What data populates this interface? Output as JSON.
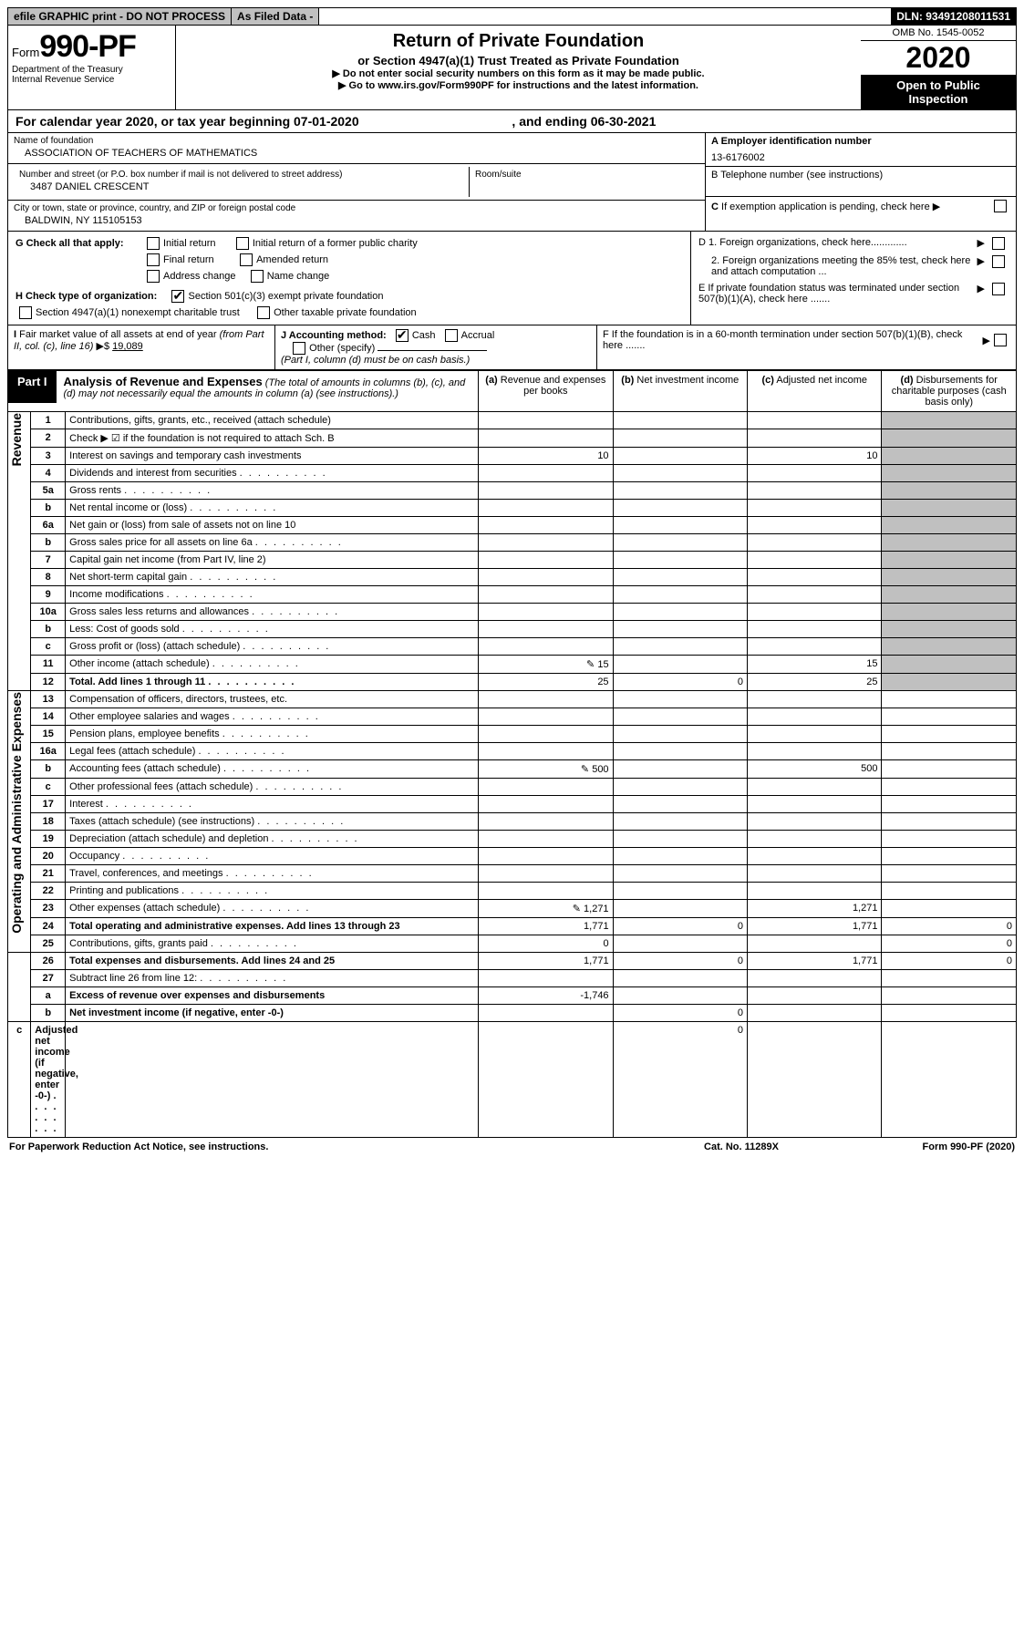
{
  "header": {
    "efile": "efile GRAPHIC print - DO NOT PROCESS",
    "asfiled": "As Filed Data -",
    "dln": "DLN: 93491208011531",
    "form_prefix": "Form",
    "form_number": "990-PF",
    "dept1": "Department of the Treasury",
    "dept2": "Internal Revenue Service",
    "title": "Return of Private Foundation",
    "subtitle": "or Section 4947(a)(1) Trust Treated as Private Foundation",
    "line1": "▶ Do not enter social security numbers on this form as it may be made public.",
    "line2_pre": "▶ Go to ",
    "line2_link": "www.irs.gov/Form990PF",
    "line2_post": " for instructions and the latest information.",
    "omb": "OMB No. 1545-0052",
    "year": "2020",
    "open": "Open to Public Inspection"
  },
  "calendar": {
    "pre": "For calendar year 2020, or tax year beginning ",
    "begin": "07-01-2020",
    "mid": " , and ending ",
    "end": "06-30-2021"
  },
  "entity": {
    "name_lbl": "Name of foundation",
    "name": "ASSOCIATION OF TEACHERS OF MATHEMATICS",
    "addr_lbl": "Number and street (or P.O. box number if mail is not delivered to street address)",
    "addr": "3487 DANIEL CRESCENT",
    "room_lbl": "Room/suite",
    "city_lbl": "City or town, state or province, country, and ZIP or foreign postal code",
    "city": "BALDWIN, NY  115105153",
    "a_lbl": "A Employer identification number",
    "a_val": "13-6176002",
    "b_lbl": "B Telephone number (see instructions)",
    "c_lbl": "C If exemption application is pending, check here"
  },
  "g": {
    "label": "G Check all that apply:",
    "initial": "Initial return",
    "initial_former": "Initial return of a former public charity",
    "final": "Final return",
    "amended": "Amended return",
    "addr_change": "Address change",
    "name_change": "Name change"
  },
  "h": {
    "label": "H Check type of organization:",
    "sec501": "Section 501(c)(3) exempt private foundation",
    "sec4947": "Section 4947(a)(1) nonexempt charitable trust",
    "other_tax": "Other taxable private foundation"
  },
  "d": {
    "d1": "D 1. Foreign organizations, check here.............",
    "d2": "2. Foreign organizations meeting the 85% test, check here and attach computation ...",
    "e": "E If private foundation status was terminated under section 507(b)(1)(A), check here .......",
    "f": "F If the foundation is in a 60-month termination under section 507(b)(1)(B), check here ......."
  },
  "i": {
    "label": "I Fair market value of all assets at end of year (from Part II, col. (c), line 16) ▶$",
    "value": "19,089"
  },
  "j": {
    "label": "J Accounting method:",
    "cash": "Cash",
    "accrual": "Accrual",
    "other": "Other (specify)",
    "note": "(Part I, column (d) must be on cash basis.)"
  },
  "part1": {
    "label": "Part I",
    "title": "Analysis of Revenue and Expenses",
    "title_note": " (The total of amounts in columns (b), (c), and (d) may not necessarily equal the amounts in column (a) (see instructions).)",
    "col_a": "(a) Revenue and expenses per books",
    "col_b": "(b) Net investment income",
    "col_c": "(c) Adjusted net income",
    "col_d": "(d) Disbursements for charitable purposes (cash basis only)"
  },
  "sidebars": {
    "rev": "Revenue",
    "ops": "Operating and Administrative Expenses"
  },
  "rows": [
    {
      "no": "1",
      "desc": "Contributions, gifts, grants, etc., received (attach schedule)"
    },
    {
      "no": "2",
      "desc": "Check ▶ ☑ if the foundation is not required to attach Sch. B"
    },
    {
      "no": "3",
      "desc": "Interest on savings and temporary cash investments",
      "a": "10",
      "c": "10"
    },
    {
      "no": "4",
      "desc": "Dividends and interest from securities"
    },
    {
      "no": "5a",
      "desc": "Gross rents"
    },
    {
      "no": "b",
      "desc": "Net rental income or (loss)"
    },
    {
      "no": "6a",
      "desc": "Net gain or (loss) from sale of assets not on line 10"
    },
    {
      "no": "b",
      "desc": "Gross sales price for all assets on line 6a"
    },
    {
      "no": "7",
      "desc": "Capital gain net income (from Part IV, line 2)"
    },
    {
      "no": "8",
      "desc": "Net short-term capital gain"
    },
    {
      "no": "9",
      "desc": "Income modifications"
    },
    {
      "no": "10a",
      "desc": "Gross sales less returns and allowances"
    },
    {
      "no": "b",
      "desc": "Less: Cost of goods sold"
    },
    {
      "no": "c",
      "desc": "Gross profit or (loss) (attach schedule)"
    },
    {
      "no": "11",
      "desc": "Other income (attach schedule)",
      "a": "15",
      "c": "15",
      "icon": true
    },
    {
      "no": "12",
      "desc": "Total. Add lines 1 through 11",
      "a": "25",
      "b": "0",
      "c": "25",
      "bold": true
    },
    {
      "no": "13",
      "desc": "Compensation of officers, directors, trustees, etc."
    },
    {
      "no": "14",
      "desc": "Other employee salaries and wages"
    },
    {
      "no": "15",
      "desc": "Pension plans, employee benefits"
    },
    {
      "no": "16a",
      "desc": "Legal fees (attach schedule)"
    },
    {
      "no": "b",
      "desc": "Accounting fees (attach schedule)",
      "a": "500",
      "c": "500",
      "icon": true
    },
    {
      "no": "c",
      "desc": "Other professional fees (attach schedule)"
    },
    {
      "no": "17",
      "desc": "Interest"
    },
    {
      "no": "18",
      "desc": "Taxes (attach schedule) (see instructions)"
    },
    {
      "no": "19",
      "desc": "Depreciation (attach schedule) and depletion"
    },
    {
      "no": "20",
      "desc": "Occupancy"
    },
    {
      "no": "21",
      "desc": "Travel, conferences, and meetings"
    },
    {
      "no": "22",
      "desc": "Printing and publications"
    },
    {
      "no": "23",
      "desc": "Other expenses (attach schedule)",
      "a": "1,271",
      "c": "1,271",
      "icon": true
    },
    {
      "no": "24",
      "desc": "Total operating and administrative expenses. Add lines 13 through 23",
      "a": "1,771",
      "b": "0",
      "c": "1,771",
      "d": "0",
      "bold": true
    },
    {
      "no": "25",
      "desc": "Contributions, gifts, grants paid",
      "a": "0",
      "d": "0"
    },
    {
      "no": "26",
      "desc": "Total expenses and disbursements. Add lines 24 and 25",
      "a": "1,771",
      "b": "0",
      "c": "1,771",
      "d": "0",
      "bold": true
    },
    {
      "no": "27",
      "desc": "Subtract line 26 from line 12:"
    },
    {
      "no": "a",
      "desc": "Excess of revenue over expenses and disbursements",
      "a": "-1,746",
      "bold": true
    },
    {
      "no": "b",
      "desc": "Net investment income (if negative, enter -0-)",
      "b": "0",
      "bold": true
    },
    {
      "no": "c",
      "desc": "Adjusted net income (if negative, enter -0-)",
      "c": "0",
      "bold": true
    }
  ],
  "footer": {
    "left": "For Paperwork Reduction Act Notice, see instructions.",
    "mid": "Cat. No. 11289X",
    "right": "Form 990-PF (2020)"
  }
}
